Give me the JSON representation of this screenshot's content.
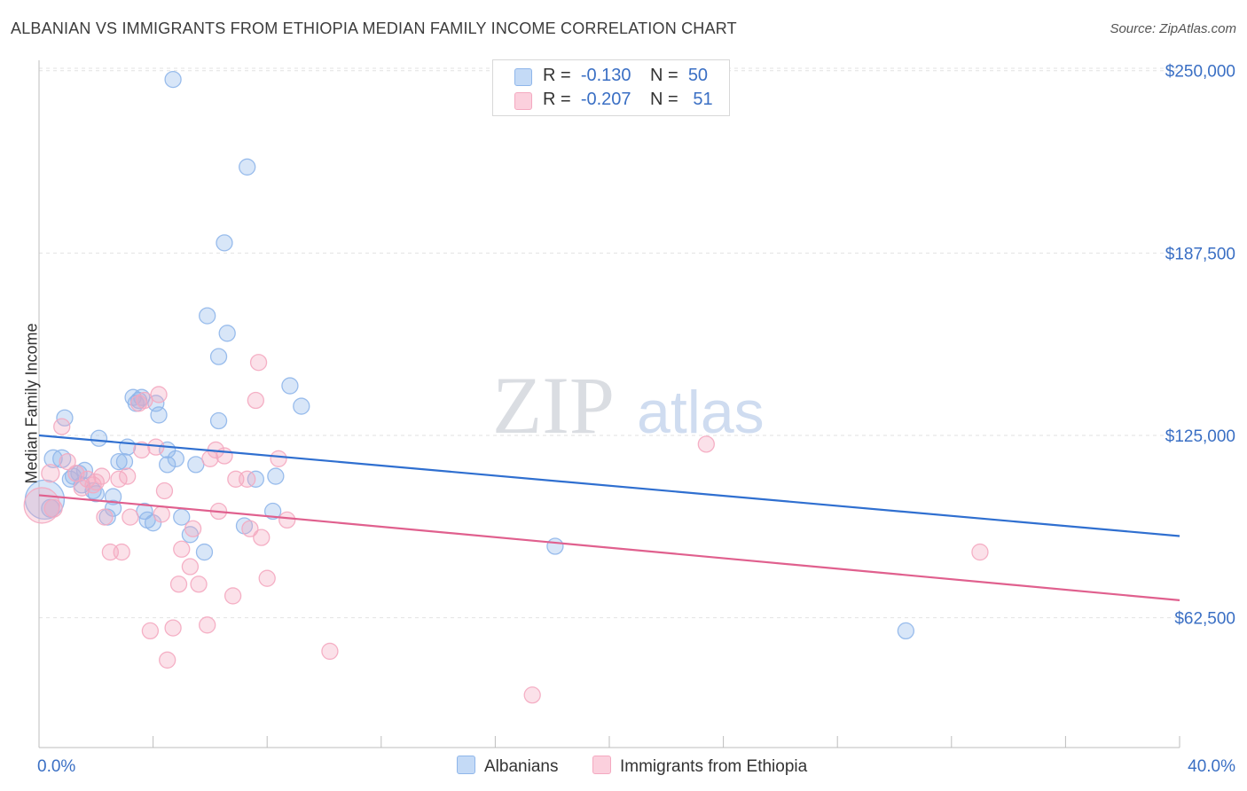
{
  "title": "ALBANIAN VS IMMIGRANTS FROM ETHIOPIA MEDIAN FAMILY INCOME CORRELATION CHART",
  "source": "Source: ZipAtlas.com",
  "watermark": {
    "part1": "ZIP",
    "part2": "atlas"
  },
  "legend_top": [
    {
      "r_label": "R =",
      "r_value": "-0.130",
      "n_label": "N =",
      "n_value": "50",
      "color": "#8fb6ea"
    },
    {
      "r_label": "R =",
      "r_value": "-0.207",
      "n_label": "N =",
      "n_value": "51",
      "color": "#f4a9c0"
    }
  ],
  "legend_bottom": [
    {
      "label": "Albanians",
      "color": "#8fb6ea"
    },
    {
      "label": "Immigrants from Ethiopia",
      "color": "#f4a9c0"
    }
  ],
  "chart_data": {
    "type": "scatter",
    "title": "ALBANIAN VS IMMIGRANTS FROM ETHIOPIA MEDIAN FAMILY INCOME CORRELATION CHART",
    "xlabel": "",
    "ylabel": "Median Family Income",
    "xlim": [
      0,
      40
    ],
    "ylim": [
      18000,
      256000
    ],
    "x_tick_labels": [
      "0.0%",
      "40.0%"
    ],
    "y_ticks": [
      62500,
      125000,
      187500,
      250000
    ],
    "y_tick_labels": [
      "$62,500",
      "$125,000",
      "$187,500",
      "$250,000"
    ],
    "grid": "horizontal dashed",
    "legend": "top-center",
    "series": [
      {
        "name": "Albanians",
        "color": "#8fb6ea",
        "line_color": "#2f6fd0",
        "trend": {
          "x": [
            0,
            40
          ],
          "y": [
            125000,
            90500
          ]
        },
        "points": [
          [
            0.2,
            103000,
            22
          ],
          [
            0.5,
            117000,
            10
          ],
          [
            0.4,
            100000,
            10
          ],
          [
            0.8,
            117000,
            10
          ],
          [
            0.9,
            131000,
            9
          ],
          [
            1.2,
            111000,
            9
          ],
          [
            1.4,
            112000,
            9
          ],
          [
            1.6,
            113000,
            9
          ],
          [
            1.9,
            106000,
            9
          ],
          [
            2.1,
            124000,
            9
          ],
          [
            2.6,
            104000,
            9
          ],
          [
            3.1,
            121000,
            9
          ],
          [
            3.3,
            138000,
            9
          ],
          [
            3.4,
            136000,
            9
          ],
          [
            2.4,
            97000,
            9
          ],
          [
            2.6,
            100000,
            9
          ],
          [
            2.8,
            116000,
            9
          ],
          [
            3.5,
            137000,
            9
          ],
          [
            3.6,
            138000,
            9
          ],
          [
            3.7,
            99000,
            9
          ],
          [
            3.8,
            96000,
            9
          ],
          [
            4.0,
            95000,
            9
          ],
          [
            4.1,
            136000,
            9
          ],
          [
            4.2,
            132000,
            9
          ],
          [
            4.5,
            120000,
            9
          ],
          [
            4.5,
            115000,
            9
          ],
          [
            4.8,
            117000,
            9
          ],
          [
            5.0,
            97000,
            9
          ],
          [
            5.3,
            91000,
            9
          ],
          [
            5.5,
            115000,
            9
          ],
          [
            5.8,
            85000,
            9
          ],
          [
            4.7,
            247000,
            9
          ],
          [
            5.9,
            166000,
            9
          ],
          [
            6.3,
            152000,
            9
          ],
          [
            6.5,
            191000,
            9
          ],
          [
            6.6,
            160000,
            9
          ],
          [
            6.3,
            130000,
            9
          ],
          [
            7.3,
            217000,
            9
          ],
          [
            7.2,
            94000,
            9
          ],
          [
            7.6,
            110000,
            9
          ],
          [
            8.3,
            111000,
            9
          ],
          [
            8.8,
            142000,
            9
          ],
          [
            9.2,
            135000,
            9
          ],
          [
            8.2,
            99000,
            9
          ],
          [
            3.0,
            116000,
            9
          ],
          [
            1.1,
            110000,
            9
          ],
          [
            2.0,
            105000,
            9
          ],
          [
            18.1,
            87000,
            9
          ],
          [
            30.4,
            58000,
            9
          ],
          [
            1.5,
            108000,
            9
          ]
        ]
      },
      {
        "name": "Immigrants from Ethiopia",
        "color": "#f4a9c0",
        "line_color": "#e0608e",
        "trend": {
          "x": [
            0,
            40
          ],
          "y": [
            104500,
            68500
          ]
        },
        "points": [
          [
            0.1,
            101000,
            20
          ],
          [
            0.4,
            112000,
            10
          ],
          [
            0.5,
            100000,
            10
          ],
          [
            0.8,
            128000,
            9
          ],
          [
            1.0,
            116000,
            9
          ],
          [
            1.3,
            112000,
            9
          ],
          [
            1.5,
            107000,
            9
          ],
          [
            1.7,
            110000,
            9
          ],
          [
            1.9,
            108000,
            9
          ],
          [
            2.0,
            109000,
            9
          ],
          [
            2.2,
            111000,
            9
          ],
          [
            2.3,
            97000,
            9
          ],
          [
            2.5,
            85000,
            9
          ],
          [
            2.8,
            110000,
            9
          ],
          [
            2.9,
            85000,
            9
          ],
          [
            3.1,
            111000,
            9
          ],
          [
            3.2,
            97000,
            9
          ],
          [
            3.5,
            136000,
            9
          ],
          [
            3.6,
            120000,
            9
          ],
          [
            3.7,
            137000,
            9
          ],
          [
            3.9,
            58000,
            9
          ],
          [
            4.1,
            121000,
            9
          ],
          [
            4.2,
            139000,
            9
          ],
          [
            4.3,
            98000,
            9
          ],
          [
            4.4,
            106000,
            9
          ],
          [
            4.5,
            48000,
            9
          ],
          [
            4.7,
            59000,
            9
          ],
          [
            4.9,
            74000,
            9
          ],
          [
            5.0,
            86000,
            9
          ],
          [
            5.3,
            80000,
            9
          ],
          [
            5.4,
            93000,
            9
          ],
          [
            5.6,
            74000,
            9
          ],
          [
            5.9,
            60000,
            9
          ],
          [
            6.0,
            117000,
            9
          ],
          [
            6.2,
            120000,
            9
          ],
          [
            6.3,
            99000,
            9
          ],
          [
            6.5,
            118000,
            9
          ],
          [
            6.8,
            70000,
            9
          ],
          [
            6.9,
            110000,
            9
          ],
          [
            7.3,
            110000,
            9
          ],
          [
            7.4,
            93000,
            9
          ],
          [
            7.6,
            137000,
            9
          ],
          [
            7.7,
            150000,
            9
          ],
          [
            7.8,
            90000,
            9
          ],
          [
            8.0,
            76000,
            9
          ],
          [
            8.4,
            117000,
            9
          ],
          [
            8.7,
            96000,
            9
          ],
          [
            10.2,
            51000,
            9
          ],
          [
            17.3,
            36000,
            9
          ],
          [
            23.4,
            122000,
            9
          ],
          [
            33.0,
            85000,
            9
          ]
        ]
      }
    ]
  }
}
